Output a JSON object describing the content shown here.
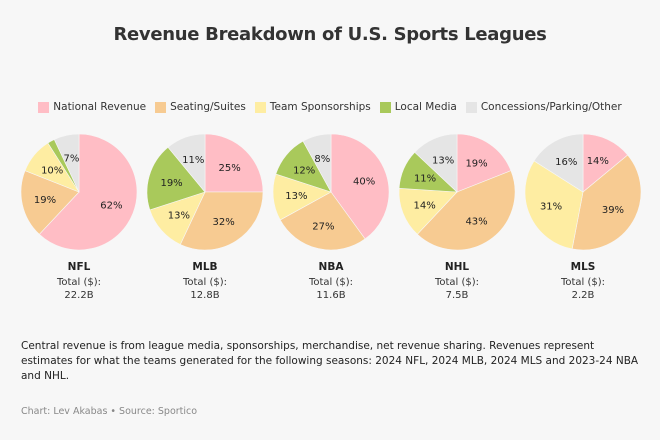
{
  "chart_data": {
    "type": "pie",
    "title": "Revenue Breakdown of U.S. Sports Leagues",
    "legend": {
      "placement": "top",
      "entries": [
        {
          "name": "National Revenue",
          "color": "#ffbdc5"
        },
        {
          "name": "Seating/Suites",
          "color": "#f7cb92"
        },
        {
          "name": "Team Sponsorships",
          "color": "#feeda2"
        },
        {
          "name": "Local Media",
          "color": "#a9c95b"
        },
        {
          "name": "Concessions/Parking/Other",
          "color": "#e5e5e5"
        }
      ]
    },
    "total_label": "Total ($):",
    "pies": [
      {
        "league": "NFL",
        "total": "22.2B",
        "values": [
          62,
          19,
          10,
          2,
          7
        ],
        "labels": [
          "62%",
          "19%",
          "10%",
          "",
          "7%"
        ]
      },
      {
        "league": "MLB",
        "total": "12.8B",
        "values": [
          25,
          32,
          13,
          19,
          11
        ],
        "labels": [
          "25%",
          "32%",
          "13%",
          "19%",
          "11%"
        ]
      },
      {
        "league": "NBA",
        "total": "11.6B",
        "values": [
          40,
          27,
          13,
          12,
          8
        ],
        "labels": [
          "40%",
          "27%",
          "13%",
          "12%",
          "8%"
        ]
      },
      {
        "league": "NHL",
        "total": "7.5B",
        "values": [
          19,
          43,
          14,
          11,
          13
        ],
        "labels": [
          "19%",
          "43%",
          "14%",
          "11%",
          "13%"
        ]
      },
      {
        "league": "MLS",
        "total": "2.2B",
        "values": [
          14,
          39,
          31,
          0,
          16
        ],
        "labels": [
          "14%",
          "39%",
          "31%",
          "",
          "16%"
        ]
      }
    ]
  },
  "footnote": "Central revenue is from league media, sponsorships, merchandise, net revenue sharing. Revenues represent estimates for what the teams generated for the following seasons: 2024 NFL, 2024 MLB, 2024 MLS and 2023-24 NBA and NHL.",
  "credit": "Chart: Lev Akabas • Source: Sportico"
}
